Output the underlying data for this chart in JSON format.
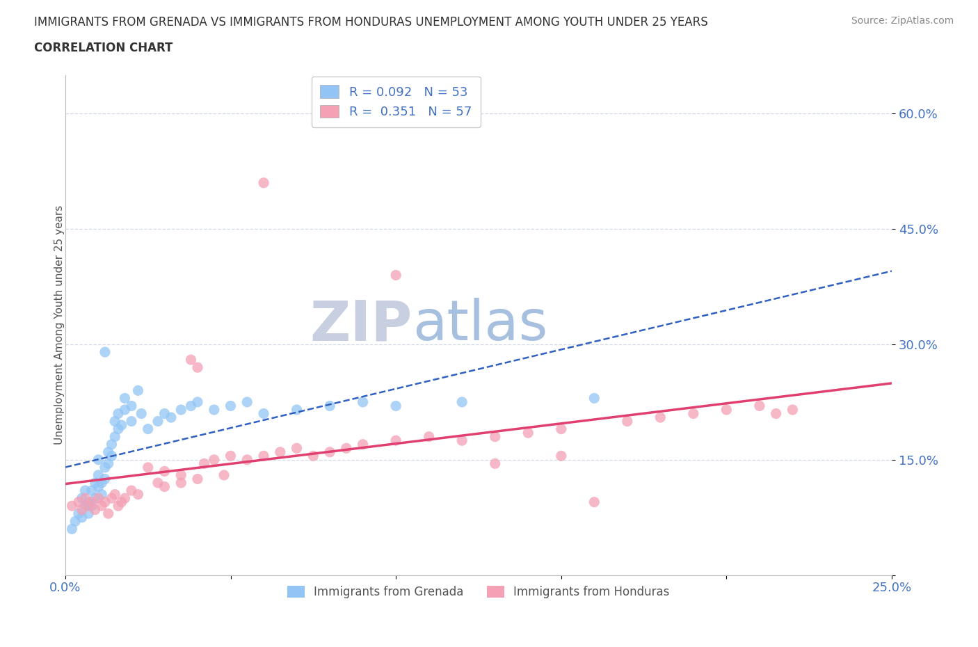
{
  "title_line1": "IMMIGRANTS FROM GRENADA VS IMMIGRANTS FROM HONDURAS UNEMPLOYMENT AMONG YOUTH UNDER 25 YEARS",
  "title_line2": "CORRELATION CHART",
  "source": "Source: ZipAtlas.com",
  "ylabel": "Unemployment Among Youth under 25 years",
  "xlim": [
    0.0,
    0.25
  ],
  "ylim": [
    0.0,
    0.65
  ],
  "yticks": [
    0.0,
    0.15,
    0.3,
    0.45,
    0.6
  ],
  "xticks": [
    0.0,
    0.05,
    0.1,
    0.15,
    0.2,
    0.25
  ],
  "grenada_color": "#92c5f5",
  "honduras_color": "#f4a0b5",
  "grenada_line_color": "#3060c0",
  "honduras_line_color": "#e04070",
  "axis_color": "#4472c4",
  "watermark_color": "#ccd8ee",
  "legend_grenada_label": "R = 0.092   N = 53",
  "legend_honduras_label": "R =  0.351   N = 57",
  "legend_label_grenada": "Immigrants from Grenada",
  "legend_label_honduras": "Immigrants from Honduras",
  "grenada_x": [
    0.002,
    0.003,
    0.004,
    0.005,
    0.005,
    0.006,
    0.006,
    0.007,
    0.007,
    0.008,
    0.008,
    0.009,
    0.009,
    0.01,
    0.01,
    0.01,
    0.011,
    0.011,
    0.012,
    0.012,
    0.013,
    0.013,
    0.014,
    0.014,
    0.015,
    0.015,
    0.016,
    0.016,
    0.017,
    0.018,
    0.018,
    0.02,
    0.02,
    0.022,
    0.023,
    0.025,
    0.028,
    0.03,
    0.032,
    0.035,
    0.038,
    0.04,
    0.045,
    0.05,
    0.055,
    0.06,
    0.07,
    0.08,
    0.09,
    0.1,
    0.12,
    0.16,
    0.012
  ],
  "grenada_y": [
    0.06,
    0.07,
    0.08,
    0.1,
    0.075,
    0.09,
    0.11,
    0.08,
    0.095,
    0.11,
    0.09,
    0.12,
    0.1,
    0.13,
    0.115,
    0.15,
    0.12,
    0.105,
    0.14,
    0.125,
    0.16,
    0.145,
    0.17,
    0.155,
    0.2,
    0.18,
    0.21,
    0.19,
    0.195,
    0.215,
    0.23,
    0.2,
    0.22,
    0.24,
    0.21,
    0.19,
    0.2,
    0.21,
    0.205,
    0.215,
    0.22,
    0.225,
    0.215,
    0.22,
    0.225,
    0.21,
    0.215,
    0.22,
    0.225,
    0.22,
    0.225,
    0.23,
    0.29
  ],
  "honduras_x": [
    0.002,
    0.004,
    0.005,
    0.006,
    0.007,
    0.008,
    0.009,
    0.01,
    0.011,
    0.012,
    0.013,
    0.014,
    0.015,
    0.016,
    0.017,
    0.018,
    0.02,
    0.022,
    0.025,
    0.028,
    0.03,
    0.035,
    0.038,
    0.04,
    0.042,
    0.045,
    0.048,
    0.05,
    0.055,
    0.06,
    0.065,
    0.07,
    0.075,
    0.08,
    0.085,
    0.09,
    0.1,
    0.11,
    0.12,
    0.13,
    0.14,
    0.15,
    0.16,
    0.17,
    0.18,
    0.19,
    0.2,
    0.21,
    0.215,
    0.22,
    0.03,
    0.035,
    0.04,
    0.1,
    0.15,
    0.06,
    0.13
  ],
  "honduras_y": [
    0.09,
    0.095,
    0.085,
    0.1,
    0.09,
    0.095,
    0.085,
    0.1,
    0.09,
    0.095,
    0.08,
    0.1,
    0.105,
    0.09,
    0.095,
    0.1,
    0.11,
    0.105,
    0.14,
    0.12,
    0.135,
    0.13,
    0.28,
    0.27,
    0.145,
    0.15,
    0.13,
    0.155,
    0.15,
    0.155,
    0.16,
    0.165,
    0.155,
    0.16,
    0.165,
    0.17,
    0.175,
    0.18,
    0.175,
    0.18,
    0.185,
    0.19,
    0.095,
    0.2,
    0.205,
    0.21,
    0.215,
    0.22,
    0.21,
    0.215,
    0.115,
    0.12,
    0.125,
    0.39,
    0.155,
    0.51,
    0.145
  ]
}
